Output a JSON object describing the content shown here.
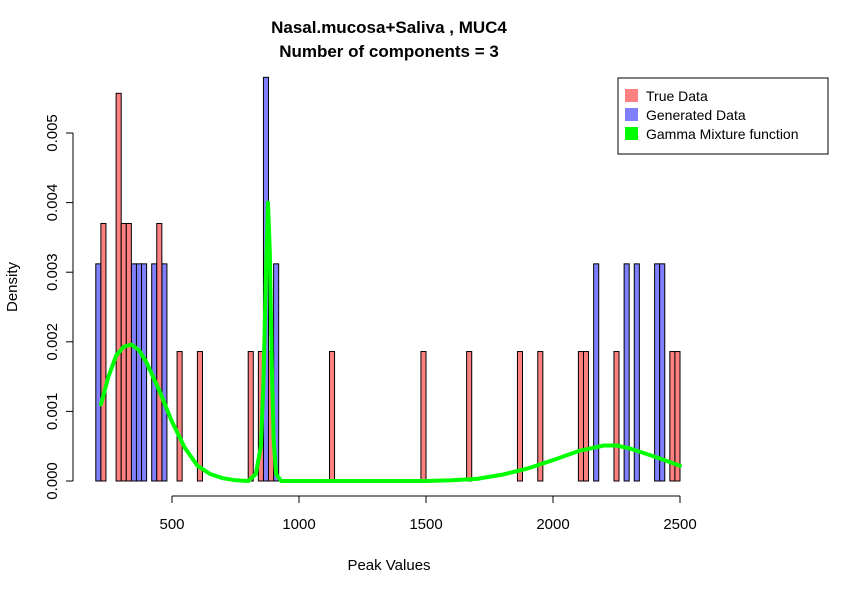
{
  "chart_data": {
    "type": "histogram",
    "title_line1": "Nasal.mucosa+Saliva , MUC4",
    "title_line2": "Number of components =  3",
    "xlabel": "Peak Values",
    "ylabel": "Density",
    "xlim": [
      200,
      2500
    ],
    "ylim": [
      0,
      0.0058
    ],
    "x_ticks": [
      500,
      1000,
      1500,
      2000,
      2500
    ],
    "x_tick_labels": [
      "500",
      "1000",
      "1500",
      "2000",
      "2500"
    ],
    "y_ticks": [
      0,
      0.001,
      0.002,
      0.003,
      0.004,
      0.005
    ],
    "y_tick_labels": [
      "0.000",
      "0.001",
      "0.002",
      "0.003",
      "0.004",
      "0.005"
    ],
    "bin_width": 20,
    "legend": {
      "position": "top-right",
      "entries": [
        {
          "label": "True Data",
          "color": "#FF8080"
        },
        {
          "label": "Generated Data",
          "color": "#8080FF"
        },
        {
          "label": "Gamma Mixture function",
          "color": "#00FF00"
        }
      ]
    },
    "series": [
      {
        "name": "Generated Data",
        "color": "#8080FF",
        "bins": [
          {
            "x0": 200,
            "y": 0.00312
          },
          {
            "x0": 300,
            "y": 0.00312
          },
          {
            "x0": 340,
            "y": 0.00312
          },
          {
            "x0": 360,
            "y": 0.00312
          },
          {
            "x0": 380,
            "y": 0.00312
          },
          {
            "x0": 420,
            "y": 0.00312
          },
          {
            "x0": 460,
            "y": 0.00312
          },
          {
            "x0": 860,
            "y": 0.0058
          },
          {
            "x0": 900,
            "y": 0.00312
          },
          {
            "x0": 2160,
            "y": 0.00312
          },
          {
            "x0": 2280,
            "y": 0.00312
          },
          {
            "x0": 2320,
            "y": 0.00312
          },
          {
            "x0": 2400,
            "y": 0.00312
          },
          {
            "x0": 2420,
            "y": 0.00312
          }
        ]
      },
      {
        "name": "True Data",
        "color": "#FF8080",
        "bins": [
          {
            "x0": 220,
            "y": 0.0037
          },
          {
            "x0": 280,
            "y": 0.00557
          },
          {
            "x0": 300,
            "y": 0.0037
          },
          {
            "x0": 320,
            "y": 0.0037
          },
          {
            "x0": 440,
            "y": 0.0037
          },
          {
            "x0": 520,
            "y": 0.00186
          },
          {
            "x0": 600,
            "y": 0.00186
          },
          {
            "x0": 800,
            "y": 0.00186
          },
          {
            "x0": 840,
            "y": 0.00186
          },
          {
            "x0": 880,
            "y": 0.00186
          },
          {
            "x0": 1120,
            "y": 0.00186
          },
          {
            "x0": 1480,
            "y": 0.00186
          },
          {
            "x0": 1660,
            "y": 0.00186
          },
          {
            "x0": 1860,
            "y": 0.00186
          },
          {
            "x0": 1940,
            "y": 0.00186
          },
          {
            "x0": 2100,
            "y": 0.00186
          },
          {
            "x0": 2120,
            "y": 0.00186
          },
          {
            "x0": 2240,
            "y": 0.00186
          },
          {
            "x0": 2460,
            "y": 0.00186
          },
          {
            "x0": 2480,
            "y": 0.00186
          }
        ]
      },
      {
        "name": "Gamma Mixture function",
        "color": "#00FF00",
        "type": "line",
        "points": [
          [
            220,
            0.0011
          ],
          [
            250,
            0.0015
          ],
          [
            280,
            0.0018
          ],
          [
            310,
            0.00193
          ],
          [
            340,
            0.00196
          ],
          [
            370,
            0.00188
          ],
          [
            400,
            0.0017
          ],
          [
            450,
            0.0013
          ],
          [
            500,
            0.00085
          ],
          [
            550,
            0.00048
          ],
          [
            600,
            0.00022
          ],
          [
            650,
            0.0001
          ],
          [
            700,
            4e-05
          ],
          [
            750,
            1e-05
          ],
          [
            800,
            0.0
          ],
          [
            830,
            0.0001
          ],
          [
            850,
            0.0005
          ],
          [
            860,
            0.0014
          ],
          [
            870,
            0.003
          ],
          [
            878,
            0.004
          ],
          [
            885,
            0.0033
          ],
          [
            892,
            0.0018
          ],
          [
            900,
            0.0006
          ],
          [
            910,
            0.0001
          ],
          [
            930,
            0.0
          ],
          [
            1000,
            0.0
          ],
          [
            1200,
            0.0
          ],
          [
            1400,
            0.0
          ],
          [
            1500,
            0.0
          ],
          [
            1600,
            1e-05
          ],
          [
            1700,
            3e-05
          ],
          [
            1800,
            9e-05
          ],
          [
            1900,
            0.00018
          ],
          [
            2000,
            0.0003
          ],
          [
            2100,
            0.00043
          ],
          [
            2200,
            0.00051
          ],
          [
            2250,
            0.00051
          ],
          [
            2300,
            0.00047
          ],
          [
            2400,
            0.00035
          ],
          [
            2500,
            0.00022
          ]
        ]
      }
    ]
  }
}
